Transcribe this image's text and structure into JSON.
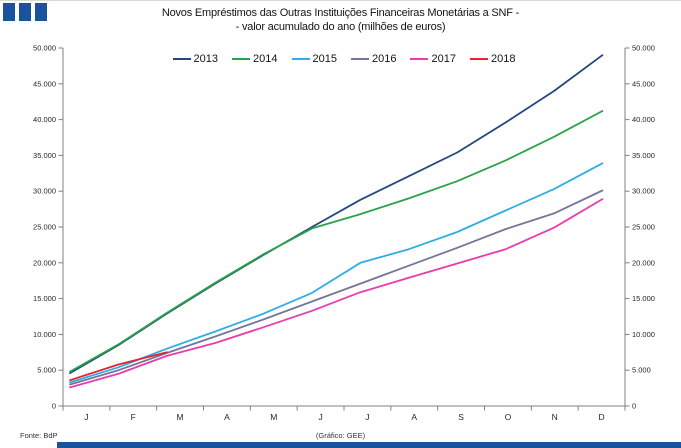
{
  "brand": {
    "squares_color": "#1A529C",
    "bottom_bar_color": "#1A529C"
  },
  "title": {
    "line1": "Novos Empréstimos das Outras Instituições Financeiras Monetárias a SNF -",
    "line2": "- valor acumulado do ano (milhões de euros)"
  },
  "footer": {
    "source": "Fonte: BdP",
    "credit": "(Gráfico: GEE)"
  },
  "chart_data": {
    "type": "line",
    "title": "Novos Empréstimos das Outras Instituições Financeiras Monetárias a SNF - valor acumulado do ano (milhões de euros)",
    "xlabel": "",
    "ylabel": "",
    "categories": [
      "J",
      "F",
      "M",
      "A",
      "M",
      "J",
      "J",
      "A",
      "S",
      "O",
      "N",
      "D"
    ],
    "ylim": [
      0,
      50000
    ],
    "y_tick_step": 5000,
    "y_tick_labels": [
      "0",
      "5.000",
      "10.000",
      "15.000",
      "20.000",
      "25.000",
      "30.000",
      "35.000",
      "40.000",
      "45.000",
      "50.000"
    ],
    "grid": false,
    "legend_position": "top",
    "dual_axis": true,
    "series": [
      {
        "name": "2013",
        "color": "#24477D",
        "values": [
          4600,
          8500,
          12900,
          17100,
          21100,
          25000,
          28800,
          32100,
          35400,
          39600,
          44000,
          49000
        ]
      },
      {
        "name": "2014",
        "color": "#29A349",
        "values": [
          4800,
          8600,
          13000,
          17200,
          21200,
          24800,
          26800,
          29000,
          31400,
          34300,
          37600,
          41200
        ]
      },
      {
        "name": "2015",
        "color": "#2FAEE3",
        "values": [
          3300,
          5400,
          8000,
          10400,
          12900,
          15800,
          20000,
          21900,
          24300,
          27300,
          30300,
          33900
        ]
      },
      {
        "name": "2016",
        "color": "#75759B",
        "values": [
          3000,
          5000,
          7400,
          9700,
          12100,
          14600,
          17100,
          19600,
          22100,
          24700,
          26900,
          30100
        ]
      },
      {
        "name": "2017",
        "color": "#E93CAE",
        "values": [
          2600,
          4500,
          7000,
          8800,
          11000,
          13300,
          15900,
          17900,
          19900,
          21900,
          24900,
          28900
        ]
      },
      {
        "name": "2018",
        "color": "#E3242B",
        "values": [
          3600,
          5800,
          7500
        ]
      }
    ]
  }
}
